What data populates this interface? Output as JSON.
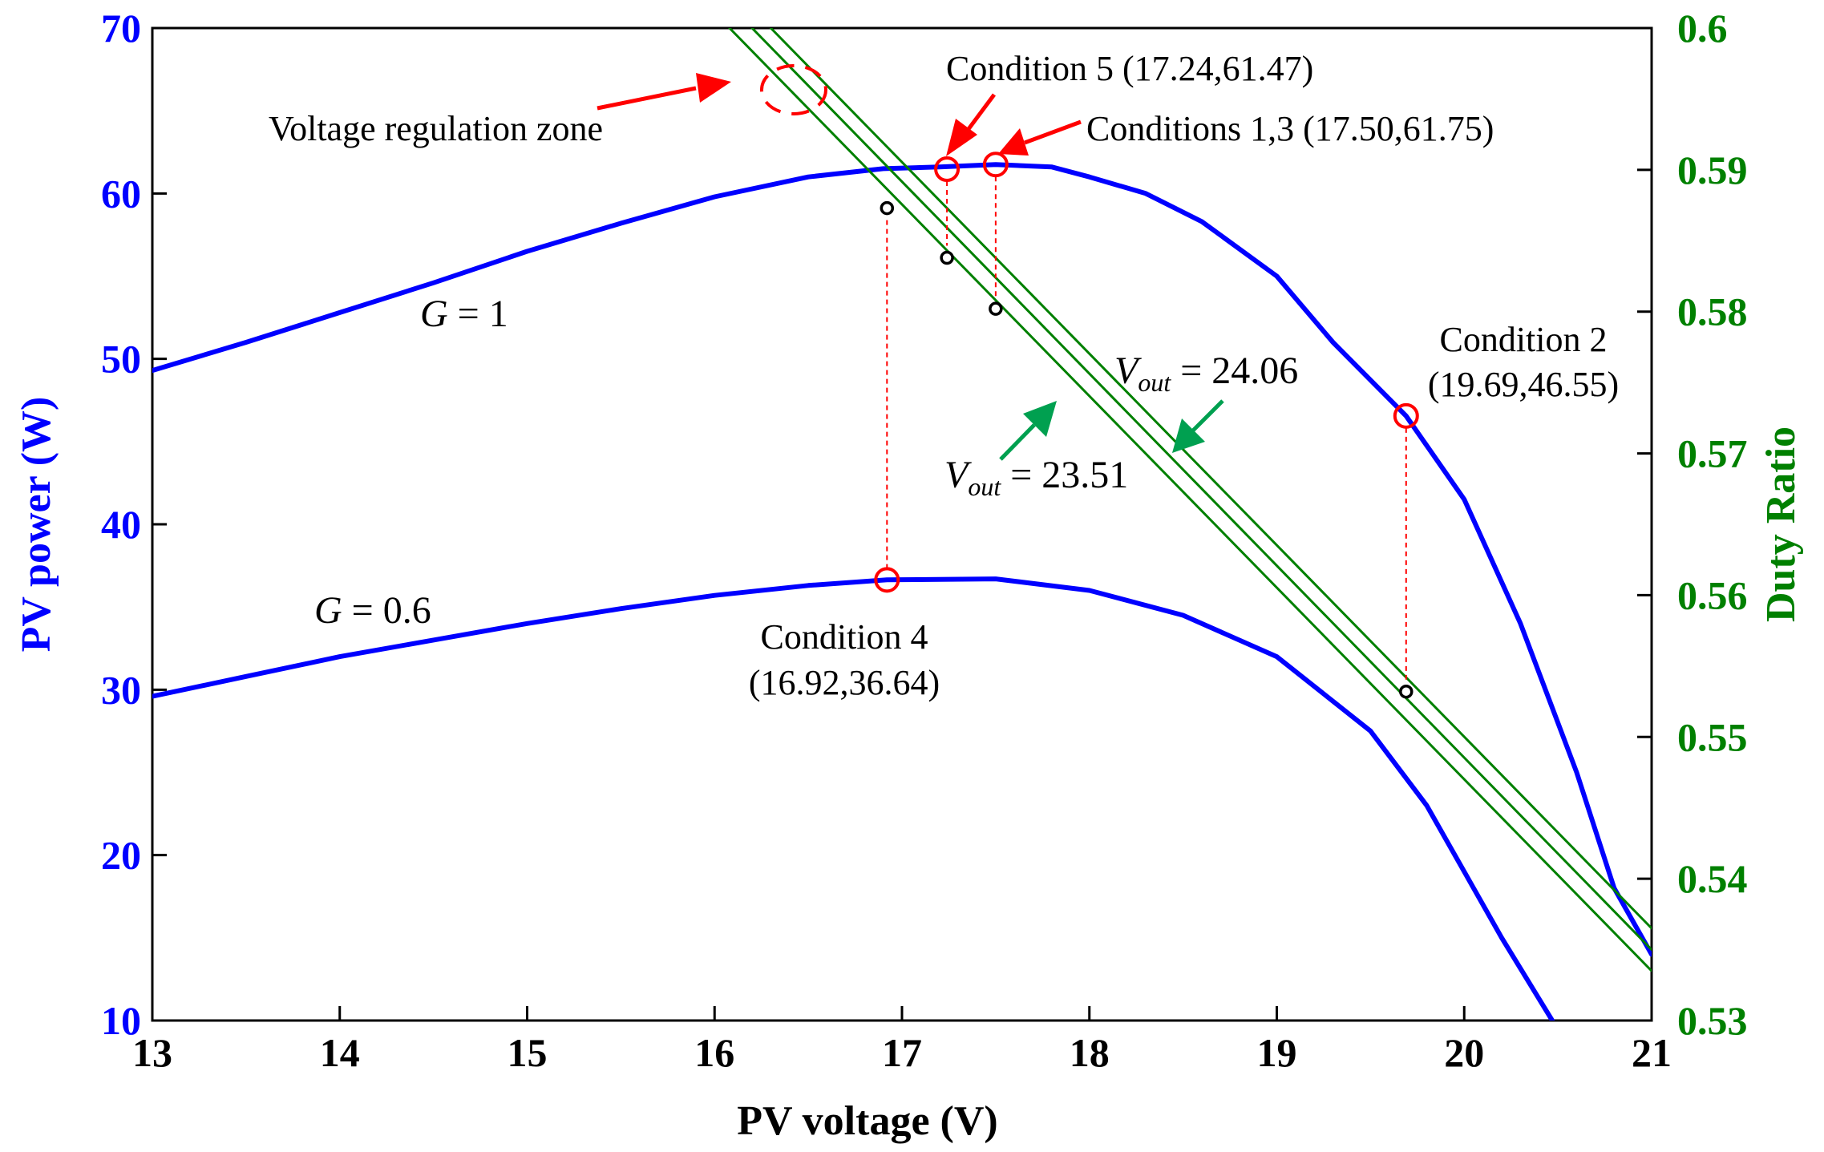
{
  "chart_data": {
    "type": "line",
    "x_axis": {
      "label": "PV voltage (V)",
      "range": [
        13,
        21
      ],
      "ticks": [
        13,
        14,
        15,
        16,
        17,
        18,
        19,
        20,
        21
      ]
    },
    "y_left_axis": {
      "label": "PV power (W)",
      "range": [
        10,
        70
      ],
      "ticks": [
        10,
        20,
        30,
        40,
        50,
        60,
        70
      ],
      "color": "#0000ff"
    },
    "y_right_axis": {
      "label": "Duty Ratio",
      "range": [
        0.53,
        0.6
      ],
      "ticks": [
        "0.53",
        "0.54",
        "0.55",
        "0.56",
        "0.57",
        "0.58",
        "0.59",
        "0.6"
      ],
      "color": "#008000"
    },
    "series": [
      {
        "name": "G = 1",
        "axis": "left",
        "color": "#0000ff",
        "points": [
          [
            13.0,
            49.3
          ],
          [
            13.5,
            51.0
          ],
          [
            14.0,
            52.8
          ],
          [
            14.5,
            54.6
          ],
          [
            15.0,
            56.5
          ],
          [
            15.5,
            58.2
          ],
          [
            16.0,
            59.8
          ],
          [
            16.5,
            61.0
          ],
          [
            16.9,
            61.5
          ],
          [
            17.2,
            61.6
          ],
          [
            17.5,
            61.75
          ],
          [
            17.8,
            61.6
          ],
          [
            18.0,
            61.0
          ],
          [
            18.3,
            60.0
          ],
          [
            18.6,
            58.3
          ],
          [
            19.0,
            55.0
          ],
          [
            19.3,
            51.0
          ],
          [
            19.69,
            46.55
          ],
          [
            20.0,
            41.5
          ],
          [
            20.3,
            34.0
          ],
          [
            20.6,
            25.0
          ],
          [
            20.8,
            18.0
          ],
          [
            21.0,
            14.0
          ]
        ]
      },
      {
        "name": "G = 0.6",
        "axis": "left",
        "color": "#0000ff",
        "points": [
          [
            13.0,
            29.6
          ],
          [
            13.5,
            30.8
          ],
          [
            14.0,
            32.0
          ],
          [
            14.5,
            33.0
          ],
          [
            15.0,
            34.0
          ],
          [
            15.5,
            34.9
          ],
          [
            16.0,
            35.7
          ],
          [
            16.5,
            36.3
          ],
          [
            16.92,
            36.64
          ],
          [
            17.5,
            36.7
          ],
          [
            18.0,
            36.0
          ],
          [
            18.5,
            34.5
          ],
          [
            19.0,
            32.0
          ],
          [
            19.5,
            27.5
          ],
          [
            19.8,
            23.0
          ],
          [
            20.0,
            19.0
          ],
          [
            20.2,
            15.0
          ],
          [
            20.47,
            10.0
          ]
        ]
      },
      {
        "name": "Vout = 24.06",
        "axis": "right",
        "color": "#008000",
        "points": [
          [
            16.3,
            0.6
          ],
          [
            21.0,
            0.5365
          ]
        ]
      },
      {
        "name": "Vout = 23.51 (a)",
        "axis": "right",
        "color": "#008000",
        "points": [
          [
            16.2,
            0.6
          ],
          [
            21.0,
            0.535
          ]
        ]
      },
      {
        "name": "Vout = 23.51 (b)",
        "axis": "right",
        "color": "#008000",
        "points": [
          [
            16.08,
            0.6
          ],
          [
            21.0,
            0.5335
          ]
        ]
      }
    ],
    "operating_points": [
      {
        "label": "Condition 4",
        "v": 16.92,
        "p": 36.64,
        "duty": 0.5873
      },
      {
        "label": "Condition 5",
        "v": 17.24,
        "p": 61.47,
        "duty": 0.5838
      },
      {
        "label": "Conditions 1,3",
        "v": 17.5,
        "p": 61.75,
        "duty": 0.5802
      },
      {
        "label": "Condition 2",
        "v": 19.69,
        "p": 46.55,
        "duty": 0.5532
      }
    ],
    "annotations": {
      "regulation_zone": "Voltage regulation zone",
      "cond5": "Condition 5 (17.24,61.47)",
      "cond13": "Conditions 1,3 (17.50,61.75)",
      "cond2_line1": "Condition 2",
      "cond2_line2": "(19.69,46.55)",
      "cond4_line1": "Condition 4",
      "cond4_line2": "(16.92,36.64)",
      "g1_var": "G",
      "g1_eq": " = 1",
      "g06_var": "G",
      "g06_eq": " = 0.6",
      "vout_a_var": "V",
      "vout_a_sub": "out",
      "vout_a_eq": " = 24.06",
      "vout_b_var": "V",
      "vout_b_sub": "out",
      "vout_b_eq": " = 23.51"
    },
    "colors": {
      "marker_red": "#ff0000",
      "marker_black": "#000000",
      "arrow_red": "#ff0000",
      "arrow_green": "#00a050"
    }
  }
}
